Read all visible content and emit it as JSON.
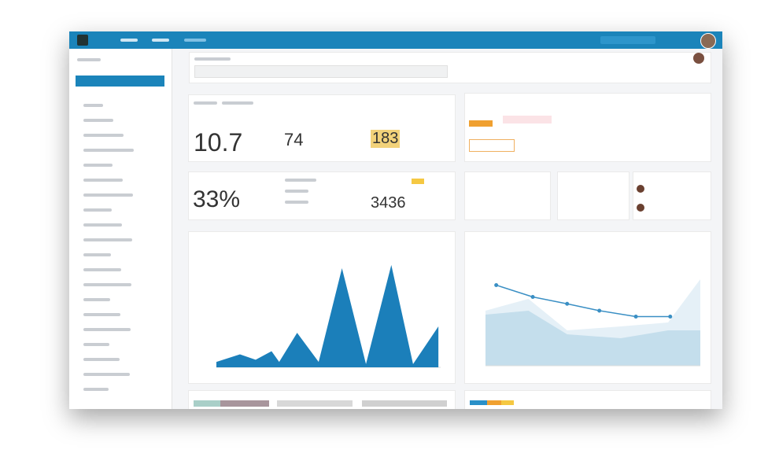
{
  "stats": {
    "main": "10.7",
    "second": "74",
    "third": "183",
    "percent": "33%",
    "fourth": "3436"
  },
  "area_chart": {
    "type": "area",
    "color": "#1b7fba",
    "xlim": [
      0,
      100
    ],
    "ylim": [
      0,
      100
    ],
    "x": [
      0,
      10.5,
      17.5,
      24.6,
      28,
      36,
      45.6,
      56,
      66.7,
      78,
      87.7,
      99
    ],
    "values": [
      5,
      12,
      7,
      15,
      5,
      32,
      5,
      92,
      3,
      95,
      3,
      38
    ]
  },
  "line_chart": {
    "type": "line",
    "color": "#3a8fc4",
    "xlim": [
      0,
      100
    ],
    "ylim": [
      0,
      100
    ],
    "x": [
      5,
      22,
      38,
      53,
      70,
      86
    ],
    "values": [
      82,
      70,
      63,
      56,
      50,
      50
    ],
    "area_x": [
      0,
      20,
      38,
      63,
      85,
      100
    ],
    "area1": [
      56,
      68,
      36,
      40,
      44,
      88
    ],
    "area2": [
      52,
      56,
      32,
      28,
      36,
      36
    ]
  }
}
